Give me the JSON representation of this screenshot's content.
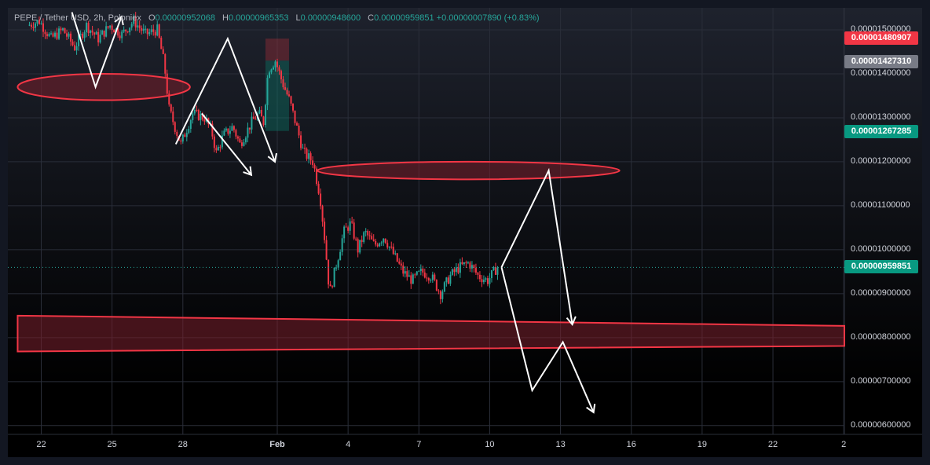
{
  "legend": {
    "symbol": "PEPE / Tether USD",
    "interval": "2h",
    "exchange": "Poloniex",
    "o_label": "O",
    "o_value": "0.00000952068",
    "h_label": "H",
    "h_value": "0.00000965353",
    "l_label": "L",
    "l_value": "0.00000948600",
    "c_label": "C",
    "c_value": "0.00000959851",
    "change": "+0.00000007890 (+0.83%)"
  },
  "price_tags": [
    {
      "label": "0.00001480907",
      "price": 1.480907e-05,
      "color": "#f23645"
    },
    {
      "label": "0.00001427310",
      "price": 1.42731e-05,
      "color": "#787b86"
    },
    {
      "label": "0.00001267285",
      "price": 1.267285e-05,
      "color": "#089981"
    },
    {
      "label": "0.00000959851",
      "price": 9.59851e-06,
      "color": "#089981"
    }
  ],
  "colors": {
    "up": "#26a69a",
    "down": "#f23645",
    "zone_stroke": "#f23645",
    "zone_fill": "#7a1f2b",
    "arrow": "#ffffff"
  },
  "chart_data": {
    "type": "candlestick",
    "symbol": "PEPE/USDT",
    "timeframe": "2h",
    "y_axis": {
      "min": 5.8e-06,
      "max": 1.55e-05,
      "ticks": [
        {
          "label": "0.00001500000",
          "value": 1.5e-05
        },
        {
          "label": "0.00001400000",
          "value": 1.4e-05
        },
        {
          "label": "0.00001300000",
          "value": 1.3e-05
        },
        {
          "label": "0.00001200000",
          "value": 1.2e-05
        },
        {
          "label": "0.00001100000",
          "value": 1.1e-05
        },
        {
          "label": "0.00001000000",
          "value": 1e-05
        },
        {
          "label": "0.00000900000",
          "value": 9e-06
        },
        {
          "label": "0.00000800000",
          "value": 8e-06
        },
        {
          "label": "0.00000700000",
          "value": 7e-06
        },
        {
          "label": "0.00000600000",
          "value": 6e-06
        }
      ]
    },
    "x_axis": {
      "ticks": [
        {
          "label": "22",
          "day": -10
        },
        {
          "label": "25",
          "day": -7
        },
        {
          "label": "28",
          "day": -4
        },
        {
          "label": "Feb",
          "day": 0,
          "bold": true
        },
        {
          "label": "4",
          "day": 3
        },
        {
          "label": "7",
          "day": 6
        },
        {
          "label": "10",
          "day": 9
        },
        {
          "label": "13",
          "day": 12
        },
        {
          "label": "16",
          "day": 15
        },
        {
          "label": "19",
          "day": 18
        },
        {
          "label": "22",
          "day": 21
        },
        {
          "label": "2",
          "day": 24
        }
      ]
    },
    "price_path": [
      [
        -10.5,
        1.51e-05
      ],
      [
        -10,
        1.52e-05
      ],
      [
        -9.5,
        1.48e-05
      ],
      [
        -9,
        1.5e-05
      ],
      [
        -8.5,
        1.46e-05
      ],
      [
        -8,
        1.51e-05
      ],
      [
        -7.5,
        1.48e-05
      ],
      [
        -7,
        1.51e-05
      ],
      [
        -6.5,
        1.49e-05
      ],
      [
        -6,
        1.52e-05
      ],
      [
        -5.5,
        1.49e-05
      ],
      [
        -5,
        1.5e-05
      ],
      [
        -4.7,
        1.42e-05
      ],
      [
        -4.5,
        1.32e-05
      ],
      [
        -4.2,
        1.27e-05
      ],
      [
        -4,
        1.24e-05
      ],
      [
        -3.5,
        1.31e-05
      ],
      [
        -3,
        1.3e-05
      ],
      [
        -2.7,
        1.27e-05
      ],
      [
        -2.5,
        1.22e-05
      ],
      [
        -2.2,
        1.26e-05
      ],
      [
        -1.8,
        1.28e-05
      ],
      [
        -1.5,
        1.24e-05
      ],
      [
        -1,
        1.29e-05
      ],
      [
        -0.7,
        1.31e-05
      ],
      [
        -0.5,
        1.29e-05
      ],
      [
        -0.3,
        1.41e-05
      ],
      [
        0,
        1.43e-05
      ],
      [
        0.3,
        1.38e-05
      ],
      [
        0.6,
        1.34e-05
      ],
      [
        0.9,
        1.28e-05
      ],
      [
        1.2,
        1.22e-05
      ],
      [
        1.6,
        1.2e-05
      ],
      [
        1.9,
        1.12e-05
      ],
      [
        2.1,
        1.02e-05
      ],
      [
        2.3,
        9e-06
      ],
      [
        2.6,
        9.7e-06
      ],
      [
        2.9,
        1.04e-05
      ],
      [
        3.2,
        1.06e-05
      ],
      [
        3.5,
        1e-05
      ],
      [
        3.8,
        1.04e-05
      ],
      [
        4.2,
        1.01e-05
      ],
      [
        4.6,
        1.03e-05
      ],
      [
        5,
        9.9e-06
      ],
      [
        5.4,
        9.5e-06
      ],
      [
        5.8,
        9.3e-06
      ],
      [
        6.2,
        9.5e-06
      ],
      [
        6.6,
        9.4e-06
      ],
      [
        7,
        9e-06
      ],
      [
        7.4,
        9.4e-06
      ],
      [
        7.8,
        9.6e-06
      ],
      [
        8.2,
        9.7e-06
      ],
      [
        8.6,
        9.4e-06
      ],
      [
        9,
        9.3e-06
      ],
      [
        9.4,
        9.6e-06
      ]
    ],
    "zones": [
      {
        "start_day": -11,
        "end_day": -3.7,
        "top": 1.4e-05,
        "bottom": 1.34e-05,
        "shape": "ellipse"
      },
      {
        "start_day": 1.7,
        "end_day": 14.5,
        "top": 1.2e-05,
        "bottom": 1.16e-05,
        "shape": "ellipse"
      },
      {
        "start_day": -11,
        "end_day": 25,
        "top": 8.5e-06,
        "bottom": 7.9e-06,
        "shape": "band"
      }
    ],
    "drawn_arrows": [
      [
        [
          -8.7,
          1.54e-05
        ],
        [
          -7.7,
          1.37e-05
        ],
        [
          -6.6,
          1.53e-05
        ]
      ],
      [
        [
          -4.3,
          1.24e-05
        ],
        [
          -2.1,
          1.48e-05
        ],
        [
          -0.1,
          1.2e-05
        ]
      ],
      [
        [
          -3.2,
          1.31e-05
        ],
        [
          -1.1,
          1.17e-05
        ]
      ],
      [
        [
          9.5,
          9.6e-06
        ],
        [
          11.5,
          1.18e-05
        ],
        [
          12.5,
          8.3e-06
        ]
      ],
      [
        [
          9.5,
          9.6e-06
        ],
        [
          10.8,
          6.8e-06
        ],
        [
          12.1,
          7.9e-06
        ],
        [
          13.4,
          6.3e-06
        ]
      ]
    ]
  }
}
